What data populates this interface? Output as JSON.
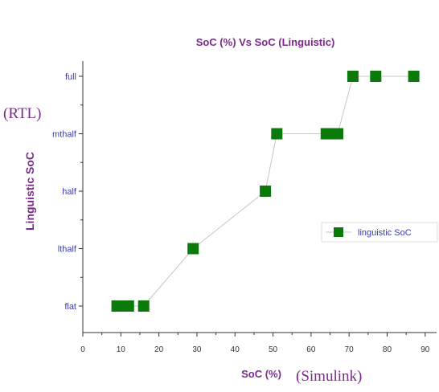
{
  "chart_data": {
    "type": "line",
    "title": "SoC (%) Vs SoC (Linguistic)",
    "xlabel": "SoC (%)",
    "ylabel": "Linguistic SoC",
    "xlim": [
      0,
      93
    ],
    "xticks": [
      "0",
      "10",
      "20",
      "30",
      "40",
      "50",
      "60",
      "70",
      "80",
      "90"
    ],
    "ycategories": [
      "flat",
      "lthalf",
      "half",
      "mthalf",
      "full"
    ],
    "series": [
      {
        "name": "linguistic SoC",
        "color": "#0b7a0b",
        "line_color": "#c6c6c6",
        "marker": "square",
        "points": [
          {
            "x": 9,
            "y": "flat"
          },
          {
            "x": 10,
            "y": "flat"
          },
          {
            "x": 11,
            "y": "flat"
          },
          {
            "x": 12,
            "y": "flat"
          },
          {
            "x": 16,
            "y": "flat"
          },
          {
            "x": 29,
            "y": "lthalf"
          },
          {
            "x": 48,
            "y": "half"
          },
          {
            "x": 51,
            "y": "mthalf"
          },
          {
            "x": 64,
            "y": "mthalf"
          },
          {
            "x": 65,
            "y": "mthalf"
          },
          {
            "x": 66,
            "y": "mthalf"
          },
          {
            "x": 67,
            "y": "mthalf"
          },
          {
            "x": 71,
            "y": "full"
          },
          {
            "x": 77,
            "y": "full"
          },
          {
            "x": 87,
            "y": "full"
          }
        ]
      }
    ],
    "legend": "right",
    "grid": false,
    "annotations": [
      "(RTL)",
      "(Simulink)"
    ]
  }
}
